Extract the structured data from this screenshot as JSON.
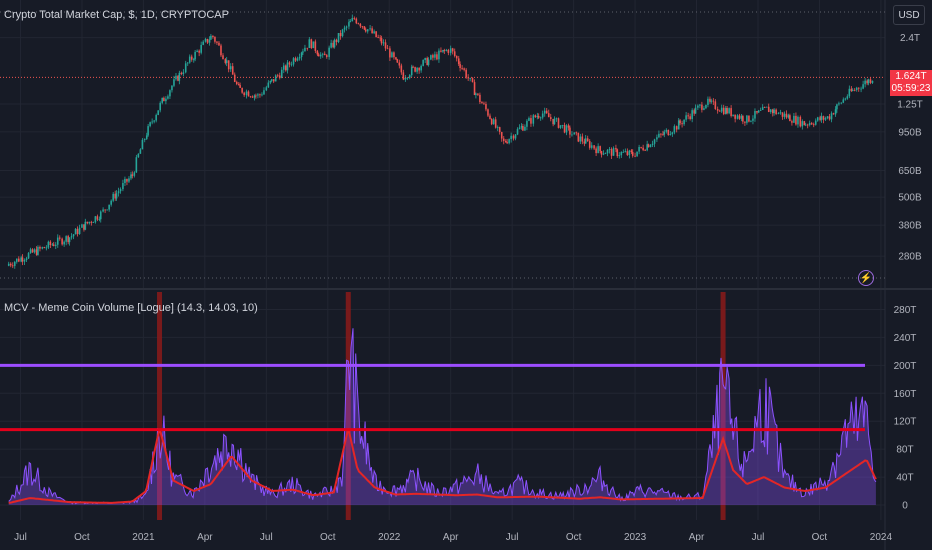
{
  "currency_button": "USD",
  "price_tag": {
    "price": "1.624T",
    "countdown": "05:59:23"
  },
  "icons": {
    "alert": "lightning-icon"
  },
  "colors": {
    "bg": "#171b26",
    "up": "#26a69a",
    "down": "#ef5350",
    "mcv": "#8c52ff",
    "ma": "#e32626",
    "threshold_high": "#9c4dff",
    "threshold_low": "#e3001b",
    "spike": "#8b1a1a"
  },
  "chart_data": [
    {
      "type": "candlestick",
      "title": "Crypto Total Market Cap, $, 1D, CRYPTOCAP",
      "y_scale": "log",
      "y_ticks": [
        "2.4T",
        "1.25T",
        "950B",
        "650B",
        "500B",
        "380B",
        "280B"
      ],
      "y_tick_values": [
        2400,
        1250,
        950,
        650,
        500,
        380,
        280
      ],
      "y_unit": "billions USD",
      "last_value": 1624,
      "x_ticks": [
        "Jul",
        "Oct",
        "2021",
        "Apr",
        "Jul",
        "Oct",
        "2022",
        "Apr",
        "Jul",
        "Oct",
        "2023",
        "Apr",
        "Jul",
        "Oct",
        "2024"
      ],
      "series": [
        {
          "key": "market_cap_path",
          "dates": [
            "2020-06-15",
            "2020-08-01",
            "2020-09-15",
            "2020-11-01",
            "2020-12-15",
            "2021-01-10",
            "2021-02-20",
            "2021-04-12",
            "2021-05-20",
            "2021-06-20",
            "2021-08-01",
            "2021-09-05",
            "2021-09-25",
            "2021-11-10",
            "2021-12-20",
            "2022-01-22",
            "2022-03-30",
            "2022-05-10",
            "2022-06-18",
            "2022-08-14",
            "2022-10-01",
            "2022-11-09",
            "2022-12-28",
            "2023-03-01",
            "2023-04-15",
            "2023-06-15",
            "2023-07-15",
            "2023-09-10",
            "2023-10-15",
            "2023-11-15",
            "2023-12-20"
          ],
          "values": [
            260,
            300,
            340,
            430,
            620,
            1000,
            1600,
            2450,
            1450,
            1350,
            1800,
            2300,
            1950,
            2900,
            2300,
            1650,
            2150,
            1350,
            850,
            1150,
            920,
            790,
            760,
            1000,
            1270,
            1070,
            1190,
            1030,
            1100,
            1390,
            1624
          ]
        }
      ]
    },
    {
      "type": "area",
      "title": "MCV - Meme Coin Volume [Logue] (14.3, 14.03, 10)",
      "y_ticks": [
        "280T",
        "240T",
        "200T",
        "160T",
        "120T",
        "80T",
        "40T",
        "0"
      ],
      "y_tick_values": [
        280,
        240,
        200,
        160,
        120,
        80,
        40,
        0
      ],
      "y_unit": "trillions",
      "thresholds": [
        200,
        108
      ],
      "spike_dates": [
        "2021-01-25",
        "2021-11-01",
        "2023-05-10"
      ],
      "series": [
        {
          "key": "meme_volume",
          "dates": [
            "2020-06-15",
            "2020-07-15",
            "2020-08-15",
            "2020-09-15",
            "2020-10-15",
            "2020-11-15",
            "2020-12-15",
            "2021-01-05",
            "2021-01-25",
            "2021-02-15",
            "2021-03-15",
            "2021-04-10",
            "2021-05-10",
            "2021-06-10",
            "2021-07-10",
            "2021-08-10",
            "2021-09-10",
            "2021-10-10",
            "2021-10-25",
            "2021-11-01",
            "2021-11-15",
            "2021-12-10",
            "2022-01-10",
            "2022-02-10",
            "2022-03-10",
            "2022-04-10",
            "2022-05-10",
            "2022-06-10",
            "2022-07-10",
            "2022-08-10",
            "2022-09-10",
            "2022-10-10",
            "2022-11-10",
            "2022-12-10",
            "2023-01-10",
            "2023-02-10",
            "2023-03-10",
            "2023-04-10",
            "2023-05-10",
            "2023-05-25",
            "2023-06-10",
            "2023-07-10",
            "2023-08-10",
            "2023-09-10",
            "2023-10-10",
            "2023-11-10",
            "2023-12-10",
            "2023-12-25"
          ],
          "values": [
            5,
            60,
            18,
            4,
            4,
            3,
            5,
            15,
            130,
            45,
            20,
            70,
            115,
            40,
            18,
            35,
            15,
            25,
            60,
            275,
            150,
            35,
            25,
            45,
            20,
            30,
            50,
            15,
            35,
            20,
            15,
            25,
            45,
            10,
            25,
            20,
            12,
            15,
            190,
            120,
            60,
            180,
            45,
            20,
            40,
            120,
            140,
            40
          ]
        },
        {
          "key": "moving_average",
          "dates": [
            "2020-06-15",
            "2020-07-15",
            "2020-09-15",
            "2020-11-15",
            "2020-12-15",
            "2021-01-05",
            "2021-01-25",
            "2021-02-15",
            "2021-03-15",
            "2021-04-10",
            "2021-05-10",
            "2021-06-10",
            "2021-07-10",
            "2021-08-10",
            "2021-09-10",
            "2021-10-10",
            "2021-11-01",
            "2021-11-15",
            "2021-12-10",
            "2022-01-10",
            "2022-02-10",
            "2022-04-10",
            "2022-05-10",
            "2022-06-10",
            "2022-08-10",
            "2022-10-10",
            "2022-11-10",
            "2022-12-10",
            "2023-02-10",
            "2023-04-10",
            "2023-05-10",
            "2023-05-25",
            "2023-06-15",
            "2023-07-10",
            "2023-08-10",
            "2023-09-10",
            "2023-10-10",
            "2023-11-10",
            "2023-12-10",
            "2023-12-25"
          ],
          "values": [
            3,
            10,
            4,
            3,
            5,
            20,
            110,
            35,
            20,
            30,
            70,
            35,
            20,
            22,
            14,
            18,
            110,
            50,
            25,
            15,
            16,
            14,
            15,
            11,
            12,
            9,
            11,
            8,
            9,
            10,
            95,
            50,
            30,
            40,
            25,
            20,
            25,
            45,
            65,
            35
          ]
        }
      ]
    }
  ]
}
